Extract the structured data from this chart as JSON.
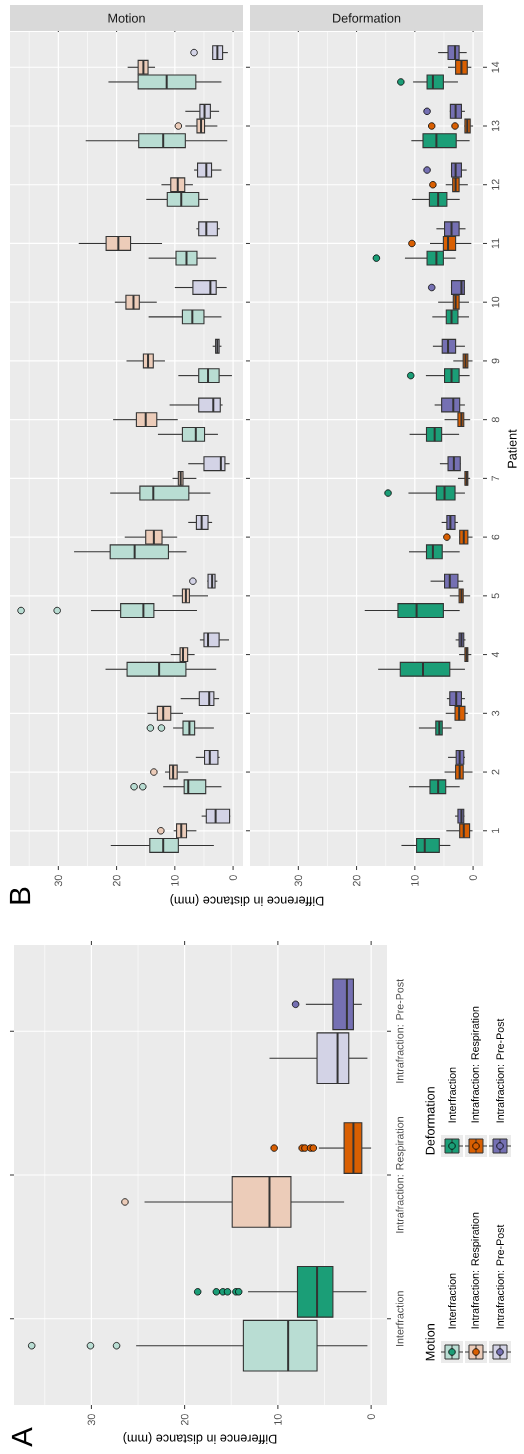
{
  "chart_data": [
    {
      "type": "box",
      "orientation": "horizontal",
      "annotations": [
        "A"
      ],
      "xlabel": "Difference in distance (mm)",
      "xlim": [
        38.3,
        -1.7
      ],
      "xticks": [
        0,
        10,
        20,
        30
      ],
      "grid": true,
      "legend": "right",
      "categories": [
        "Intrafraction: Pre-Post",
        "Intrafraction: Respiration",
        "Interfraction"
      ],
      "series": [
        {
          "name": "Motion",
          "colors": [
            "#d3d3e6",
            "#ecccb9",
            "#b9ddd3"
          ],
          "boxes": [
            {
              "low": 0.4,
              "q1": 2.4,
              "median": 3.6,
              "q3": 5.8,
              "high": 10.9
            },
            {
              "low": 2.9,
              "q1": 8.6,
              "median": 10.9,
              "q3": 14.9,
              "high": 24.3,
              "outliers": [
                26.4
              ]
            },
            {
              "low": 0.4,
              "q1": 5.8,
              "median": 8.9,
              "q3": 13.7,
              "high": 25.2,
              "outliers": [
                36.4,
                30.1,
                27.3
              ]
            }
          ]
        },
        {
          "name": "Deformation",
          "colors": [
            "#7570b3",
            "#d95f02",
            "#1b9e77"
          ],
          "boxes": [
            {
              "low": 1.0,
              "q1": 1.9,
              "median": 2.6,
              "q3": 4.1,
              "high": 7.0,
              "outliers": [
                8.1
              ]
            },
            {
              "low": 0.0,
              "q1": 1.0,
              "median": 1.9,
              "q3": 2.9,
              "high": 5.6,
              "outliers": [
                10.4,
                7.4,
                7.1,
                6.5,
                6.2
              ]
            },
            {
              "low": 0.5,
              "q1": 4.1,
              "median": 5.8,
              "q3": 7.9,
              "high": 13.2,
              "outliers": [
                18.6,
                16.6,
                15.9,
                15.4,
                14.5,
                14.2
              ]
            }
          ]
        }
      ]
    },
    {
      "type": "box",
      "orientation": "horizontal",
      "title": "Motion",
      "annotations": [
        "B"
      ],
      "xlabel": "Difference in distance (mm)",
      "xlim": [
        38.3,
        -1.7
      ],
      "xticks": [
        0,
        10,
        20,
        30
      ],
      "grid": true,
      "tick_labels": "x",
      "categories": [
        "14",
        "13",
        "12",
        "11",
        "10",
        "9",
        "8",
        "7",
        "6",
        "5",
        "4",
        "3",
        "2",
        "1"
      ],
      "series": [
        {
          "color": "#b9ddd3",
          "boxes": [
            {
              "low": 2.0,
              "q1": 6.4,
              "median": 11.4,
              "q3": 16.3,
              "high": 21.4
            },
            {
              "low": 1.0,
              "q1": 8.2,
              "median": 12.0,
              "q3": 16.2,
              "high": 25.3
            },
            {
              "low": 4.3,
              "q1": 5.9,
              "median": 8.9,
              "q3": 11.3,
              "high": 14.9
            },
            {
              "low": 2.9,
              "q1": 6.2,
              "median": 8.0,
              "q3": 9.8,
              "high": 14.5
            },
            {
              "low": 2.0,
              "q1": 5.0,
              "median": 7.0,
              "q3": 8.7,
              "high": 14.5
            },
            {
              "low": 0.2,
              "q1": 2.4,
              "median": 4.3,
              "q3": 5.9,
              "high": 9.4
            },
            {
              "low": 2.6,
              "q1": 4.9,
              "median": 6.4,
              "q3": 8.7,
              "high": 12.9
            },
            {
              "low": 3.9,
              "q1": 7.6,
              "median": 13.7,
              "q3": 16.0,
              "high": 21.1
            },
            {
              "low": 8.0,
              "q1": 11.1,
              "median": 16.9,
              "q3": 21.1,
              "high": 27.3
            },
            {
              "low": 6.2,
              "q1": 13.6,
              "median": 15.4,
              "q3": 19.3,
              "high": 24.4,
              "outliers": [
                36.4,
                30.2
              ]
            },
            {
              "low": 2.9,
              "q1": 8.1,
              "median": 12.7,
              "q3": 18.2,
              "high": 21.9
            },
            {
              "low": 3.3,
              "q1": 6.6,
              "median": 7.5,
              "q3": 8.6,
              "high": 10.3,
              "outliers": [
                14.2,
                12.3
              ]
            },
            {
              "low": 2.0,
              "q1": 4.7,
              "median": 7.7,
              "q3": 8.4,
              "high": 12.0,
              "outliers": [
                17.0,
                15.5
              ]
            },
            {
              "low": 3.3,
              "q1": 9.4,
              "median": 12.0,
              "q3": 14.3,
              "high": 21.0
            }
          ]
        },
        {
          "color": "#ecccb9",
          "boxes": [
            {
              "low": 13.4,
              "q1": 14.6,
              "median": 15.4,
              "q3": 16.3,
              "high": 18.1
            },
            {
              "low": 2.7,
              "q1": 4.9,
              "median": 5.5,
              "q3": 6.2,
              "high": 8.2,
              "outliers": [
                9.4
              ]
            },
            {
              "low": 6.9,
              "q1": 8.3,
              "median": 9.5,
              "q3": 10.7,
              "high": 12.3
            },
            {
              "low": 12.2,
              "q1": 17.6,
              "median": 19.7,
              "q3": 21.8,
              "high": 26.5
            },
            {
              "low": 13.1,
              "q1": 16.1,
              "median": 17.1,
              "q3": 18.4,
              "high": 20.3
            },
            {
              "low": 11.7,
              "q1": 13.7,
              "median": 14.6,
              "q3": 15.4,
              "high": 18.3
            },
            {
              "low": 9.5,
              "q1": 13.1,
              "median": 15.0,
              "q3": 16.6,
              "high": 20.6
            },
            {
              "low": 6.3,
              "q1": 8.6,
              "median": 9.0,
              "q3": 9.4,
              "high": 10.4
            },
            {
              "low": 9.6,
              "q1": 12.2,
              "median": 13.6,
              "q3": 15.0,
              "high": 18.6
            },
            {
              "low": 4.3,
              "q1": 7.5,
              "median": 8.1,
              "q3": 8.7,
              "high": 10.4
            },
            {
              "low": 6.6,
              "q1": 7.8,
              "median": 8.6,
              "q3": 9.1,
              "high": 10.7
            },
            {
              "low": 8.6,
              "q1": 10.7,
              "median": 12.0,
              "q3": 13.0,
              "high": 14.7
            },
            {
              "low": 7.7,
              "q1": 9.6,
              "median": 10.3,
              "q3": 10.9,
              "high": 11.7,
              "outliers": [
                13.6
              ]
            },
            {
              "low": 6.3,
              "q1": 8.0,
              "median": 8.9,
              "q3": 9.7,
              "high": 10.2,
              "outliers": [
                12.4
              ]
            }
          ]
        },
        {
          "color": "#d3d3e6",
          "boxes": [
            {
              "low": 0.9,
              "q1": 1.8,
              "median": 2.7,
              "q3": 3.5,
              "high": 3.6,
              "outliers": [
                6.7
              ]
            },
            {
              "low": 2.4,
              "q1": 3.9,
              "median": 4.9,
              "q3": 5.7,
              "high": 8.2
            },
            {
              "low": 2.0,
              "q1": 3.7,
              "median": 4.6,
              "q3": 6.1,
              "high": 6.7
            },
            {
              "low": 2.3,
              "q1": 2.7,
              "median": 4.6,
              "q3": 5.9,
              "high": 6.3
            },
            {
              "low": 1.1,
              "q1": 2.9,
              "median": 3.9,
              "q3": 6.9,
              "high": 10.0
            },
            {
              "low": 2.0,
              "q1": 2.4,
              "median": 2.7,
              "q3": 3.0,
              "high": 3.5
            },
            {
              "low": 1.8,
              "q1": 2.2,
              "median": 3.4,
              "q3": 5.9,
              "high": 10.9
            },
            {
              "low": 0.6,
              "q1": 1.4,
              "median": 2.1,
              "q3": 5.0,
              "high": 7.7
            },
            {
              "low": 3.6,
              "q1": 4.3,
              "median": 5.4,
              "q3": 6.3,
              "high": 7.7
            },
            {
              "low": 2.7,
              "q1": 3.1,
              "median": 3.6,
              "q3": 4.3,
              "high": 4.4,
              "outliers": [
                6.9
              ]
            },
            {
              "low": 0.7,
              "q1": 2.4,
              "median": 4.3,
              "q3": 5.0,
              "high": 5.7
            },
            {
              "low": 2.4,
              "q1": 3.3,
              "median": 4.1,
              "q3": 5.8,
              "high": 9.0
            },
            {
              "low": 2.3,
              "q1": 2.6,
              "median": 4.0,
              "q3": 4.9,
              "high": 6.4
            },
            {
              "low": 0.5,
              "q1": 0.6,
              "median": 3.0,
              "q3": 4.6,
              "high": 5.4
            }
          ]
        }
      ]
    },
    {
      "type": "box",
      "orientation": "horizontal",
      "title": "Deformation",
      "ylabel": "Patient",
      "xlim": [
        38.3,
        -1.7
      ],
      "xticks": [
        0,
        10,
        20,
        30
      ],
      "grid": true,
      "categories": [
        "14",
        "13",
        "12",
        "11",
        "10",
        "9",
        "8",
        "7",
        "6",
        "5",
        "4",
        "3",
        "2",
        "1"
      ],
      "series": [
        {
          "color": "#1b9e77",
          "boxes": [
            {
              "low": 2.6,
              "q1": 5.1,
              "median": 6.9,
              "q3": 7.9,
              "high": 10.3,
              "outliers": [
                12.4
              ]
            },
            {
              "low": 0.6,
              "q1": 2.9,
              "median": 6.3,
              "q3": 8.6,
              "high": 10.6
            },
            {
              "low": 2.3,
              "q1": 4.5,
              "median": 6.0,
              "q3": 7.5,
              "high": 10.5
            },
            {
              "low": 3.0,
              "q1": 5.1,
              "median": 6.3,
              "q3": 7.9,
              "high": 11.7,
              "outliers": [
                16.6
              ]
            },
            {
              "low": 0.7,
              "q1": 2.6,
              "median": 3.7,
              "q3": 4.6,
              "high": 7.0
            },
            {
              "low": 0.6,
              "q1": 2.4,
              "median": 3.7,
              "q3": 4.9,
              "high": 8.1,
              "outliers": [
                10.7
              ]
            },
            {
              "low": 2.4,
              "q1": 5.4,
              "median": 6.6,
              "q3": 8.0,
              "high": 10.9
            },
            {
              "low": 1.4,
              "q1": 3.1,
              "median": 4.9,
              "q3": 6.3,
              "high": 11.1,
              "outliers": [
                14.6
              ]
            },
            {
              "low": 2.3,
              "q1": 5.3,
              "median": 6.9,
              "q3": 8.0,
              "high": 11.0
            },
            {
              "low": 2.3,
              "q1": 5.1,
              "median": 9.7,
              "q3": 12.9,
              "high": 18.6
            },
            {
              "low": 1.4,
              "q1": 4.0,
              "median": 8.6,
              "q3": 12.5,
              "high": 16.3
            },
            {
              "low": 3.7,
              "q1": 5.3,
              "median": 5.8,
              "q3": 6.4,
              "high": 9.3
            },
            {
              "low": 2.3,
              "q1": 4.7,
              "median": 6.0,
              "q3": 7.4,
              "high": 11.0
            },
            {
              "low": 3.9,
              "q1": 5.8,
              "median": 8.3,
              "q3": 9.7,
              "high": 12.3
            }
          ]
        },
        {
          "color": "#d95f02",
          "boxes": [
            {
              "low": 0.3,
              "q1": 1.0,
              "median": 2.0,
              "q3": 3.0,
              "high": 4.3
            },
            {
              "low": 0.0,
              "q1": 0.5,
              "median": 1.0,
              "q3": 1.4,
              "high": 1.5,
              "outliers": [
                7.1,
                3.1
              ]
            },
            {
              "low": 0.9,
              "q1": 2.4,
              "median": 3.0,
              "q3": 3.5,
              "high": 4.7,
              "outliers": [
                6.9
              ]
            },
            {
              "low": 0.3,
              "q1": 3.0,
              "median": 4.3,
              "q3": 5.1,
              "high": 7.4,
              "outliers": [
                10.5
              ]
            },
            {
              "low": 0.7,
              "q1": 2.4,
              "median": 3.0,
              "q3": 3.4,
              "high": 6.0
            },
            {
              "low": 0.1,
              "q1": 0.9,
              "median": 1.3,
              "q3": 1.7,
              "high": 3.4
            },
            {
              "low": 0.5,
              "q1": 1.6,
              "median": 2.0,
              "q3": 2.6,
              "high": 4.9
            },
            {
              "low": 0.5,
              "q1": 0.9,
              "median": 1.1,
              "q3": 1.4,
              "high": 2.6
            },
            {
              "low": 0.1,
              "q1": 0.9,
              "median": 1.6,
              "q3": 2.3,
              "high": 2.4,
              "outliers": [
                4.5
              ]
            },
            {
              "low": 0.5,
              "q1": 1.7,
              "median": 2.0,
              "q3": 2.4,
              "high": 4.0
            },
            {
              "low": 0.3,
              "q1": 0.9,
              "median": 1.1,
              "q3": 1.4,
              "high": 2.4
            },
            {
              "low": 0.9,
              "q1": 1.4,
              "median": 2.4,
              "q3": 3.1,
              "high": 4.7
            },
            {
              "low": 0.1,
              "q1": 1.7,
              "median": 2.3,
              "q3": 3.0,
              "high": 4.9
            },
            {
              "low": 0.1,
              "q1": 0.6,
              "median": 1.6,
              "q3": 2.3,
              "high": 4.6
            }
          ]
        },
        {
          "color": "#7570b3",
          "boxes": [
            {
              "low": 1.1,
              "q1": 2.4,
              "median": 3.1,
              "q3": 4.3,
              "high": 6.0
            },
            {
              "low": 1.4,
              "q1": 2.0,
              "median": 3.0,
              "q3": 3.9,
              "high": 4.0,
              "outliers": [
                7.9
              ]
            },
            {
              "low": 1.1,
              "q1": 2.0,
              "median": 3.0,
              "q3": 3.7,
              "high": 3.8,
              "outliers": [
                7.9
              ]
            },
            {
              "low": 1.3,
              "q1": 2.4,
              "median": 3.7,
              "q3": 4.9,
              "high": 6.3
            },
            {
              "low": 1.4,
              "q1": 1.5,
              "median": 2.0,
              "q3": 3.7,
              "high": 3.8,
              "outliers": [
                7.1
              ]
            },
            {
              "low": 1.4,
              "q1": 3.0,
              "median": 4.3,
              "q3": 5.3,
              "high": 6.9
            },
            {
              "low": 1.4,
              "q1": 2.3,
              "median": 3.4,
              "q3": 5.4,
              "high": 6.6
            },
            {
              "low": 2.1,
              "q1": 2.2,
              "median": 3.3,
              "q3": 4.3,
              "high": 5.7
            },
            {
              "low": 2.6,
              "q1": 3.1,
              "median": 3.9,
              "q3": 4.5,
              "high": 5.4
            },
            {
              "low": 1.7,
              "q1": 2.6,
              "median": 4.0,
              "q3": 4.9,
              "high": 7.3
            },
            {
              "low": 1.3,
              "q1": 1.6,
              "median": 2.0,
              "q3": 2.4,
              "high": 3.0
            },
            {
              "low": 1.4,
              "q1": 2.0,
              "median": 2.9,
              "q3": 4.0,
              "high": 4.5
            },
            {
              "low": 1.4,
              "q1": 1.6,
              "median": 2.3,
              "q3": 2.9,
              "high": 4.3
            },
            {
              "low": 1.5,
              "q1": 1.6,
              "median": 2.0,
              "q3": 2.6,
              "high": 3.1
            }
          ]
        }
      ]
    }
  ]
}
